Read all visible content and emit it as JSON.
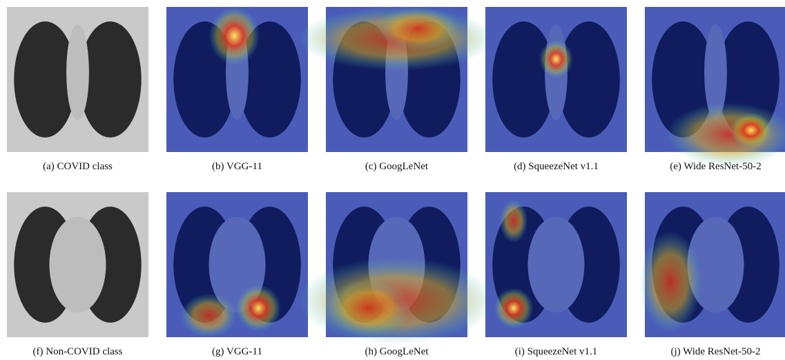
{
  "figure": {
    "panels": [
      {
        "caption": "(a) COVID class"
      },
      {
        "caption": "(b) VGG-11"
      },
      {
        "caption": "(c) GoogLeNet"
      },
      {
        "caption": "(d) SqueezeNet v1.1"
      },
      {
        "caption": "(e) Wide ResNet-50-2"
      },
      {
        "caption": "(f) Non-COVID class"
      },
      {
        "caption": "(g) VGG-11"
      },
      {
        "caption": "(h) GoogLeNet"
      },
      {
        "caption": "(i) SqueezeNet v1.1"
      },
      {
        "caption": "(j) Wide ResNet-50-2"
      }
    ]
  }
}
